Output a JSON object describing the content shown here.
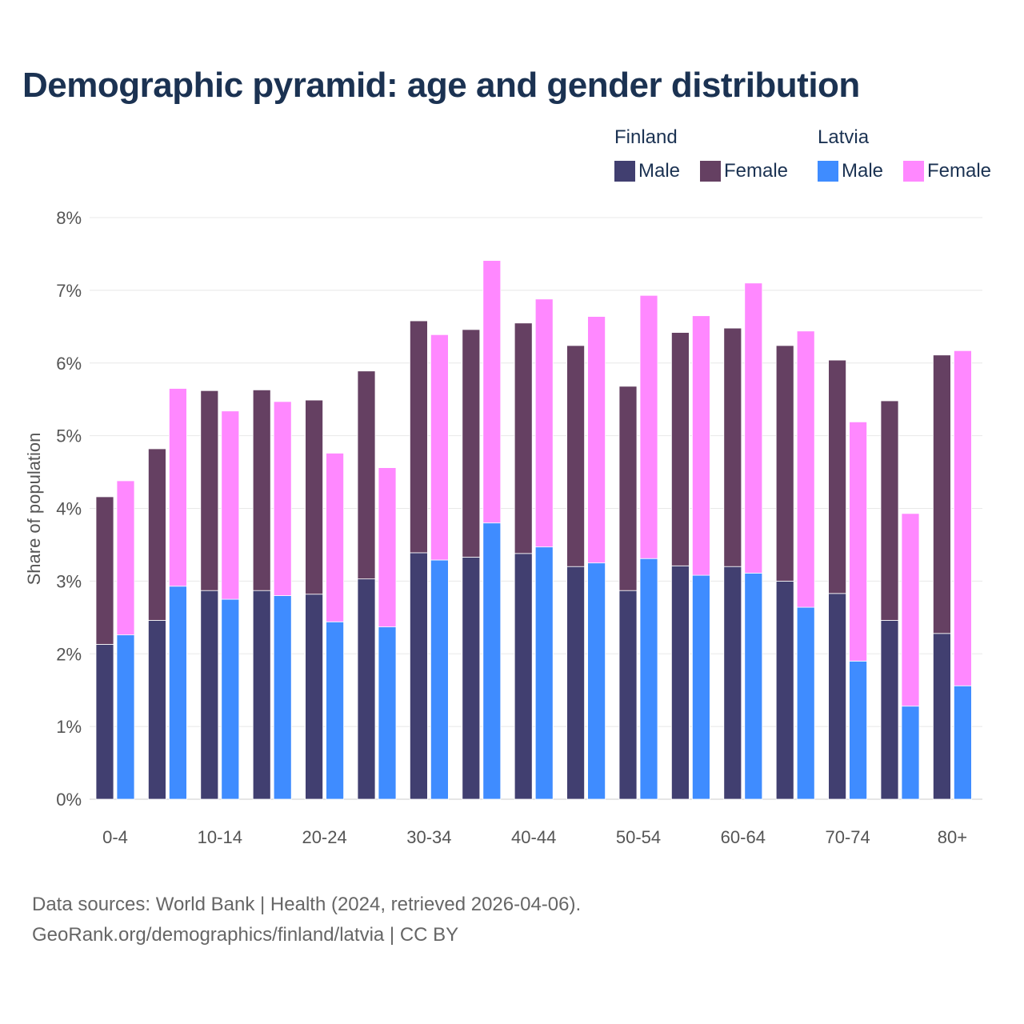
{
  "chart_data": {
    "type": "bar",
    "stacked": true,
    "title": "Demographic pyramid: age and gender distribution",
    "ylabel": "Share of population",
    "xlabel": "",
    "ylim": [
      0,
      8
    ],
    "y_ticks": [
      "0%",
      "1%",
      "2%",
      "3%",
      "4%",
      "5%",
      "6%",
      "7%",
      "8%"
    ],
    "grid": true,
    "legend_position": "top-right",
    "categories": [
      "0-4",
      "5-9",
      "10-14",
      "15-19",
      "20-24",
      "25-29",
      "30-34",
      "35-39",
      "40-44",
      "45-49",
      "50-54",
      "55-59",
      "60-64",
      "65-69",
      "70-74",
      "75-79",
      "80+"
    ],
    "x_tick_labels": [
      "0-4",
      "10-14",
      "20-24",
      "30-34",
      "40-44",
      "50-54",
      "60-64",
      "70-74",
      "80+"
    ],
    "groups": [
      {
        "name": "Finland",
        "series": [
          {
            "name": "Male",
            "color": "#413f70",
            "values": [
              2.13,
              2.46,
              2.87,
              2.87,
              2.82,
              3.03,
              3.39,
              3.33,
              3.38,
              3.2,
              2.87,
              3.21,
              3.2,
              3.0,
              2.83,
              2.46,
              2.28
            ]
          },
          {
            "name": "Female",
            "color": "#654062",
            "values": [
              2.03,
              2.36,
              2.75,
              2.76,
              2.67,
              2.86,
              3.19,
              3.13,
              3.17,
              3.04,
              2.81,
              3.21,
              3.28,
              3.24,
              3.21,
              3.02,
              3.83
            ]
          }
        ]
      },
      {
        "name": "Latvia",
        "series": [
          {
            "name": "Male",
            "color": "#3f8cff",
            "values": [
              2.26,
              2.93,
              2.75,
              2.8,
              2.44,
              2.37,
              3.29,
              3.8,
              3.47,
              3.25,
              3.31,
              3.08,
              3.11,
              2.64,
              1.9,
              1.28,
              1.56
            ]
          },
          {
            "name": "Female",
            "color": "#ff88ff",
            "values": [
              2.12,
              2.72,
              2.59,
              2.67,
              2.32,
              2.19,
              3.1,
              3.61,
              3.41,
              3.39,
              3.62,
              3.57,
              3.99,
              3.8,
              3.29,
              2.65,
              4.61
            ]
          }
        ]
      }
    ]
  },
  "footer": {
    "source": "Data sources: World Bank | Health (2024, retrieved 2026-04-06).",
    "credit": "GeoRank.org/demographics/finland/latvia | CC BY"
  }
}
